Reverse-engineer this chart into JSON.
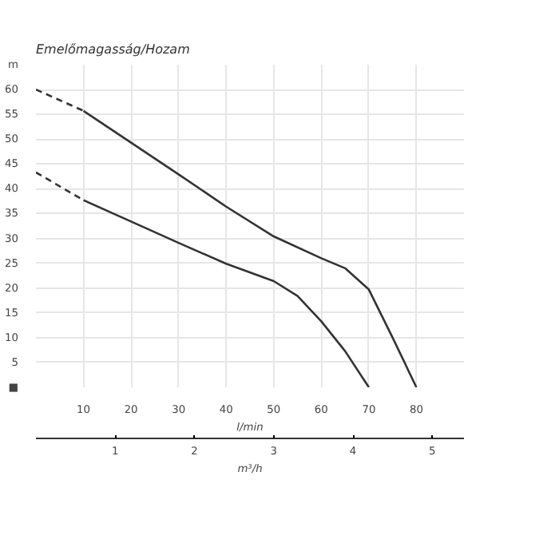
{
  "chart_data": {
    "type": "line",
    "ylabel": "Emelőmagasság/Hozam",
    "xlabel": "l/min",
    "x2label": "m³/h",
    "xlim": [
      0,
      90
    ],
    "xticks": [
      10,
      20,
      30,
      40,
      50,
      60,
      70,
      80
    ],
    "ylim": [
      0,
      65
    ],
    "yticks": [
      {
        "value": 0,
        "label": "■"
      },
      5,
      10,
      15,
      20,
      25,
      30,
      35,
      40,
      45,
      50,
      55,
      60,
      {
        "value": 65,
        "label": "m"
      }
    ],
    "x2lim": [
      0,
      5.4
    ],
    "x2ticks": [
      1,
      2,
      3,
      4,
      5
    ],
    "grid": true,
    "marker": "none",
    "series": [
      {
        "color": "#333333",
        "line_style": "dashed",
        "x": [
          0,
          10
        ],
        "values": [
          60,
          55.7
        ]
      },
      {
        "color": "#333333",
        "line_style": "solid",
        "x": [
          10,
          20,
          30,
          40,
          50,
          60,
          65,
          70,
          75,
          80
        ],
        "values": [
          55.7,
          49.3,
          42.9,
          36.4,
          30.4,
          26,
          24,
          19.7,
          10,
          0
        ]
      },
      {
        "color": "#333333",
        "line_style": "dashed",
        "x": [
          0,
          10
        ],
        "values": [
          43.3,
          37.7
        ]
      },
      {
        "color": "#333333",
        "line_style": "solid",
        "x": [
          10,
          20,
          30,
          40,
          50,
          55,
          60,
          65,
          70
        ],
        "values": [
          37.7,
          33.4,
          29.1,
          24.9,
          21.4,
          18.4,
          13.3,
          7.3,
          0
        ]
      }
    ]
  }
}
